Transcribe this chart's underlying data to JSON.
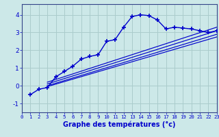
{
  "xlabel": "Graphe des températures (°c)",
  "bg_color": "#cce8e8",
  "grid_color": "#aacccc",
  "line_color": "#0000cc",
  "spine_color": "#334488",
  "x_ticks": [
    0,
    1,
    2,
    3,
    4,
    5,
    6,
    7,
    8,
    9,
    10,
    11,
    12,
    13,
    14,
    15,
    16,
    17,
    18,
    19,
    20,
    21,
    22,
    23
  ],
  "ylim": [
    -1.5,
    4.6
  ],
  "xlim": [
    0,
    23
  ],
  "yticks": [
    -1,
    0,
    1,
    2,
    3,
    4
  ],
  "main_x": [
    1,
    2,
    3,
    4,
    5,
    6,
    7,
    8,
    9,
    10,
    11,
    12,
    13,
    14,
    15,
    16,
    17,
    18,
    19,
    20,
    21,
    22,
    23
  ],
  "main_y": [
    -0.5,
    -0.2,
    -0.1,
    0.5,
    0.8,
    1.1,
    1.5,
    1.65,
    1.75,
    2.5,
    2.6,
    3.3,
    3.9,
    4.0,
    3.95,
    3.7,
    3.2,
    3.3,
    3.25,
    3.2,
    3.1,
    3.0,
    3.1
  ],
  "ref_lines": [
    {
      "x": [
        3,
        23
      ],
      "y": [
        0.1,
        3.1
      ]
    },
    {
      "x": [
        3,
        23
      ],
      "y": [
        0.0,
        2.9
      ]
    },
    {
      "x": [
        3,
        23
      ],
      "y": [
        -0.05,
        2.75
      ]
    },
    {
      "x": [
        3,
        23
      ],
      "y": [
        0.2,
        3.3
      ]
    }
  ]
}
